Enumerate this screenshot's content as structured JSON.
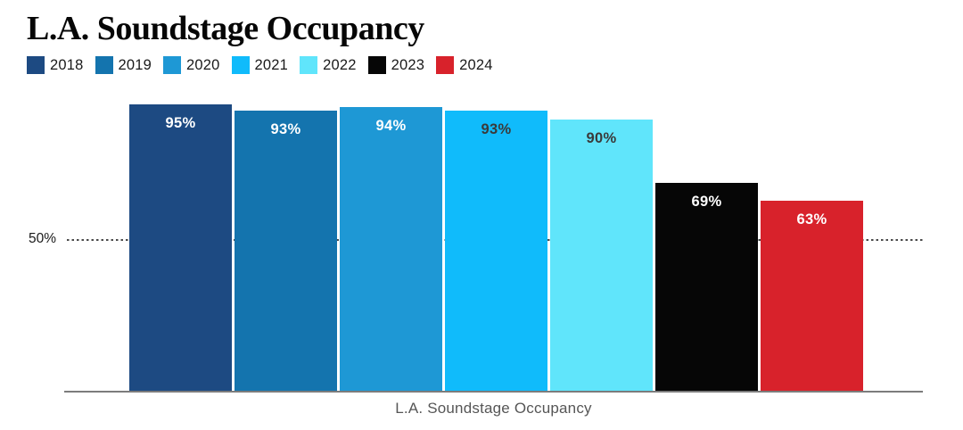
{
  "title": "L.A. Soundstage Occupancy",
  "caption": "L.A. Soundstage Occupancy",
  "chart_data": {
    "type": "bar",
    "title": "L.A. Soundstage Occupancy",
    "categories": [
      "2018",
      "2019",
      "2020",
      "2021",
      "2022",
      "2023",
      "2024"
    ],
    "values": [
      95,
      93,
      94,
      93,
      90,
      69,
      63
    ],
    "value_labels": [
      "95%",
      "93%",
      "94%",
      "93%",
      "90%",
      "69%",
      "63%"
    ],
    "bar_colors": [
      "#1d4a82",
      "#1474ae",
      "#1e98d5",
      "#10bbfb",
      "#60e5fb",
      "#060606",
      "#d8222b"
    ],
    "value_label_colors": [
      "#ffffff",
      "#ffffff",
      "#ffffff",
      "#3a3a3a",
      "#3a3a3a",
      "#ffffff",
      "#ffffff"
    ],
    "xlabel": "L.A. Soundstage Occupancy",
    "ylabel": "",
    "ylim": [
      0,
      100
    ],
    "gridline": {
      "value": 50,
      "label": "50%",
      "style": "dotted"
    },
    "legend_position": "top",
    "grid": "single-reference-line-at-50"
  }
}
